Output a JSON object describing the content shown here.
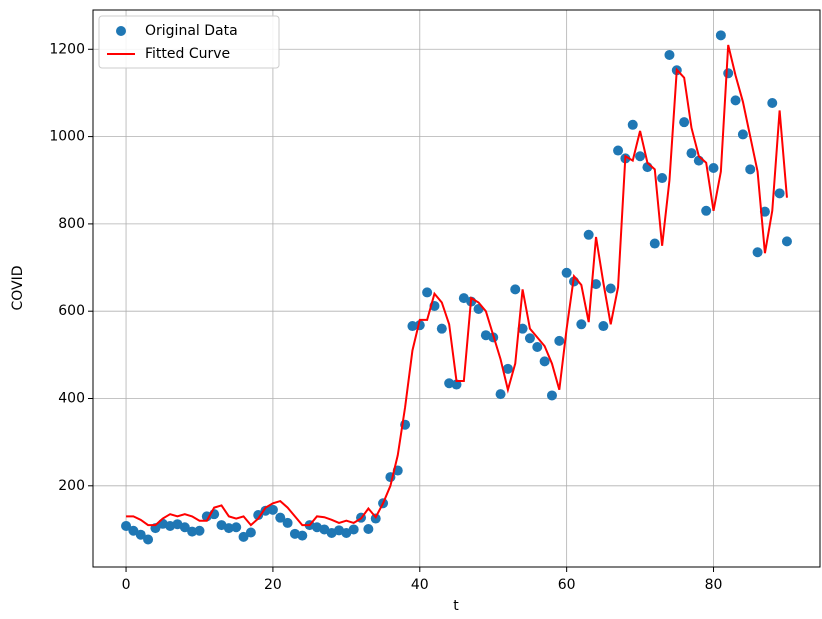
{
  "chart_data": {
    "type": "line",
    "xlabel": "t",
    "ylabel": "COVID",
    "x": [
      0,
      1,
      2,
      3,
      4,
      5,
      6,
      7,
      8,
      9,
      10,
      11,
      12,
      13,
      14,
      15,
      16,
      17,
      18,
      19,
      20,
      21,
      22,
      23,
      24,
      25,
      26,
      27,
      28,
      29,
      30,
      31,
      32,
      33,
      34,
      35,
      36,
      37,
      38,
      39,
      40,
      41,
      42,
      43,
      44,
      45,
      46,
      47,
      48,
      49,
      50,
      51,
      52,
      53,
      54,
      55,
      56,
      57,
      58,
      59,
      60,
      61,
      62,
      63,
      64,
      65,
      66,
      67,
      68,
      69,
      70,
      71,
      72,
      73,
      74,
      75,
      76,
      77,
      78,
      79,
      80,
      81,
      82,
      83,
      84,
      85,
      86,
      87,
      88,
      89,
      90
    ],
    "series": [
      {
        "name": "Original Data",
        "type": "scatter",
        "color": "#1f77b4",
        "values": [
          108,
          97,
          88,
          77,
          103,
          113,
          108,
          112,
          105,
          95,
          97,
          130,
          135,
          110,
          103,
          105,
          83,
          93,
          133,
          143,
          145,
          127,
          115,
          90,
          86,
          110,
          105,
          100,
          92,
          98,
          92,
          100,
          127,
          101,
          125,
          160,
          220,
          235,
          340,
          566,
          568,
          643,
          612,
          560,
          435,
          432,
          630,
          622,
          605,
          545,
          540,
          410,
          468,
          650,
          560,
          538,
          518,
          485,
          407,
          532,
          688,
          668,
          570,
          775,
          662,
          566,
          652,
          968,
          950,
          1027,
          955,
          930,
          755,
          905,
          1187,
          1152,
          1033,
          962,
          945,
          830,
          928,
          1232,
          1145,
          1083,
          1005,
          925,
          735,
          828,
          1077,
          870,
          760
        ]
      },
      {
        "name": "Fitted Curve",
        "type": "line",
        "color": "#ff0000",
        "values": [
          130,
          130,
          122,
          110,
          110,
          125,
          135,
          130,
          135,
          130,
          120,
          120,
          150,
          155,
          130,
          125,
          130,
          110,
          125,
          150,
          160,
          165,
          150,
          130,
          110,
          110,
          130,
          128,
          122,
          115,
          120,
          115,
          125,
          148,
          128,
          160,
          200,
          270,
          380,
          510,
          580,
          580,
          640,
          620,
          570,
          440,
          440,
          630,
          620,
          600,
          545,
          490,
          420,
          480,
          650,
          560,
          540,
          520,
          480,
          420,
          560,
          680,
          660,
          575,
          770,
          665,
          570,
          655,
          955,
          945,
          1013,
          940,
          925,
          750,
          900,
          1153,
          1135,
          1020,
          955,
          940,
          830,
          920,
          1210,
          1140,
          1080,
          1000,
          920,
          733,
          830,
          1060,
          860
        ]
      }
    ],
    "xlim": [
      -4.5,
      94.5
    ],
    "xticks": [
      0,
      20,
      40,
      60,
      80
    ],
    "ylim": [
      14,
      1290
    ],
    "yticks": [
      200,
      400,
      600,
      800,
      1000,
      1200
    ],
    "grid": true,
    "legend": "upper left"
  }
}
